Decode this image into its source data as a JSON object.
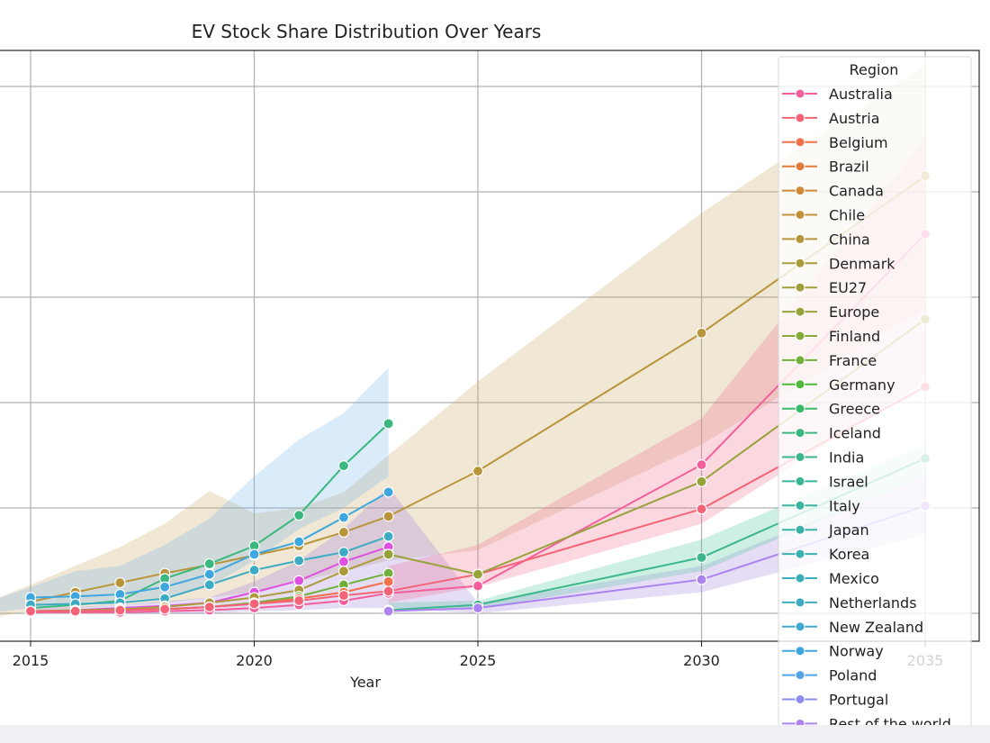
{
  "chart_data": {
    "type": "line",
    "title": "EV Stock Share Distribution Over Years",
    "xlabel": "Year",
    "ylabel": "",
    "x_ticks": [
      "2015",
      "2020",
      "2025",
      "2030",
      "2035"
    ],
    "xlim": [
      2014,
      2036.2
    ],
    "ylim": [
      -0.27,
      5.35
    ],
    "y_gridlines": [
      0,
      1,
      2,
      3,
      4,
      5
    ],
    "grid": true,
    "legend": {
      "title": "Region",
      "placement": "top-right",
      "entries": [
        {
          "name": "Australia",
          "color": "#f45f9b"
        },
        {
          "name": "Austria",
          "color": "#f56476"
        },
        {
          "name": "Belgium",
          "color": "#f2704a"
        },
        {
          "name": "Brazil",
          "color": "#e07b39"
        },
        {
          "name": "Canada",
          "color": "#d18a3a"
        },
        {
          "name": "Chile",
          "color": "#c4903a"
        },
        {
          "name": "China",
          "color": "#b8953a"
        },
        {
          "name": "Denmark",
          "color": "#ac9b3a"
        },
        {
          "name": "EU27",
          "color": "#a19f3a"
        },
        {
          "name": "Europe",
          "color": "#98a23a"
        },
        {
          "name": "Finland",
          "color": "#86a93a"
        },
        {
          "name": "France",
          "color": "#6fb03a"
        },
        {
          "name": "Germany",
          "color": "#4db83a"
        },
        {
          "name": "Greece",
          "color": "#3aba6a"
        },
        {
          "name": "Iceland",
          "color": "#3bb87f"
        },
        {
          "name": "India",
          "color": "#3bb68d"
        },
        {
          "name": "Israel",
          "color": "#3ab597"
        },
        {
          "name": "Italy",
          "color": "#3ab39f"
        },
        {
          "name": "Japan",
          "color": "#3bb2a8"
        },
        {
          "name": "Korea",
          "color": "#3bb0b0"
        },
        {
          "name": "Mexico",
          "color": "#3caeb9"
        },
        {
          "name": "Netherlands",
          "color": "#3dacc3"
        },
        {
          "name": "New Zealand",
          "color": "#3faad0"
        },
        {
          "name": "Norway",
          "color": "#3ea7df"
        },
        {
          "name": "Poland",
          "color": "#53a2e8"
        },
        {
          "name": "Portugal",
          "color": "#8d8cf0"
        },
        {
          "name": "Rest of the world",
          "color": "#ad83f0"
        }
      ]
    },
    "bands": [
      {
        "color": "#c8a868",
        "x": [
          2014,
          2015,
          2016,
          2017,
          2018,
          2019,
          2020,
          2021,
          2022,
          2023,
          2025,
          2030,
          2035
        ],
        "upper": [
          0.1,
          0.27,
          0.45,
          0.63,
          0.85,
          1.16,
          0.95,
          1.0,
          1.15,
          1.5,
          2.2,
          3.8,
          5.2
        ],
        "lower": [
          -0.05,
          0.02,
          0.05,
          0.08,
          0.1,
          0.15,
          0.2,
          0.3,
          0.4,
          0.5,
          0.6,
          1.6,
          2.9
        ]
      },
      {
        "color": "#7ab8ea",
        "x": [
          2014,
          2015,
          2016,
          2017,
          2018,
          2019,
          2020,
          2021,
          2022,
          2023
        ],
        "upper": [
          0.1,
          0.25,
          0.4,
          0.45,
          0.65,
          0.9,
          1.3,
          1.65,
          1.9,
          2.33
        ],
        "lower": [
          0.0,
          0.05,
          0.1,
          0.12,
          0.15,
          0.25,
          0.5,
          0.8,
          1.0,
          1.3
        ]
      },
      {
        "color": "#a080e0",
        "x": [
          2015,
          2017,
          2019,
          2020,
          2021,
          2022,
          2023,
          2025,
          2030,
          2035
        ],
        "upper": [
          0.05,
          0.08,
          0.15,
          0.3,
          0.5,
          0.8,
          1.2,
          0.1,
          0.45,
          1.3
        ],
        "lower": [
          0.0,
          0.0,
          0.0,
          0.02,
          0.03,
          0.05,
          0.05,
          0.0,
          0.2,
          0.75
        ]
      },
      {
        "color": "#f07090",
        "x": [
          2023,
          2025,
          2030,
          2035
        ],
        "upper": [
          0.45,
          0.65,
          1.85,
          4.5
        ],
        "lower": [
          0.1,
          0.25,
          0.85,
          2.2
        ]
      },
      {
        "color": "#50c89a",
        "x": [
          2023,
          2025,
          2030,
          2035
        ],
        "upper": [
          0.1,
          0.12,
          0.7,
          1.6
        ],
        "lower": [
          0.02,
          0.04,
          0.4,
          1.3
        ]
      }
    ],
    "series": [
      {
        "name": "China",
        "color": "#b8953a",
        "x": [
          2015,
          2016,
          2017,
          2018,
          2019,
          2020,
          2021,
          2022,
          2023,
          2025,
          2030,
          2035
        ],
        "values": [
          0.11,
          0.2,
          0.29,
          0.38,
          0.46,
          0.55,
          0.64,
          0.77,
          0.92,
          1.35,
          2.66,
          4.15
        ]
      },
      {
        "name": "Iceland",
        "color": "#3bb87f",
        "x": [
          2015,
          2016,
          2017,
          2018,
          2019,
          2020,
          2021,
          2022,
          2023
        ],
        "values": [
          0.05,
          0.08,
          0.12,
          0.33,
          0.47,
          0.64,
          0.93,
          1.4,
          1.8
        ]
      },
      {
        "name": "Norway",
        "color": "#3ea7df",
        "x": [
          2015,
          2016,
          2017,
          2018,
          2019,
          2020,
          2021,
          2022,
          2023
        ],
        "values": [
          0.15,
          0.16,
          0.18,
          0.25,
          0.37,
          0.56,
          0.68,
          0.91,
          1.15
        ]
      },
      {
        "name": "Netherlands",
        "color": "#3dacc3",
        "x": [
          2015,
          2016,
          2017,
          2018,
          2019,
          2020,
          2021,
          2022,
          2023
        ],
        "values": [
          0.08,
          0.09,
          0.1,
          0.14,
          0.27,
          0.41,
          0.5,
          0.58,
          0.73
        ]
      },
      {
        "color": "#e050e0",
        "x": [
          2015,
          2016,
          2017,
          2018,
          2019,
          2020,
          2021,
          2022,
          2023
        ],
        "values": [
          0.02,
          0.03,
          0.05,
          0.07,
          0.1,
          0.2,
          0.31,
          0.49,
          0.63
        ]
      },
      {
        "name": "Denmark",
        "color": "#ac9b3a",
        "x": [
          2015,
          2016,
          2017,
          2018,
          2019,
          2020,
          2021,
          2022,
          2023
        ],
        "values": [
          0.02,
          0.03,
          0.04,
          0.06,
          0.1,
          0.15,
          0.22,
          0.4,
          0.56
        ]
      },
      {
        "name": "France",
        "color": "#6fb03a",
        "x": [
          2015,
          2016,
          2017,
          2018,
          2019,
          2020,
          2021,
          2022,
          2023
        ],
        "values": [
          0.01,
          0.02,
          0.03,
          0.04,
          0.06,
          0.1,
          0.16,
          0.27,
          0.38
        ]
      },
      {
        "name": "Belgium",
        "color": "#f2704a",
        "x": [
          2015,
          2016,
          2017,
          2018,
          2019,
          2020,
          2021,
          2022,
          2023
        ],
        "values": [
          0.01,
          0.02,
          0.03,
          0.04,
          0.06,
          0.09,
          0.14,
          0.2,
          0.3
        ]
      },
      {
        "name": "Australia",
        "color": "#f45f9b",
        "x": [
          2015,
          2016,
          2017,
          2018,
          2019,
          2020,
          2021,
          2022,
          2023,
          2025,
          2030,
          2035
        ],
        "values": [
          0.01,
          0.01,
          0.01,
          0.02,
          0.03,
          0.05,
          0.08,
          0.12,
          0.19,
          0.26,
          1.41,
          3.6
        ]
      },
      {
        "name": "Austria",
        "color": "#f56476",
        "x": [
          2015,
          2016,
          2017,
          2018,
          2019,
          2020,
          2021,
          2022,
          2023,
          2025,
          2030,
          2035
        ],
        "values": [
          0.02,
          0.02,
          0.03,
          0.04,
          0.06,
          0.09,
          0.12,
          0.17,
          0.21,
          0.37,
          0.99,
          2.15
        ]
      },
      {
        "name": "Europe",
        "color": "#98a23a",
        "x": [
          2023,
          2025,
          2030,
          2035
        ],
        "values": [
          0.56,
          0.37,
          1.25,
          2.79
        ]
      },
      {
        "name": "India",
        "color": "#3bb68d",
        "x": [
          2023,
          2025,
          2030,
          2035
        ],
        "values": [
          0.03,
          0.08,
          0.53,
          1.47
        ]
      },
      {
        "name": "Rest of the world",
        "color": "#ad83f0",
        "x": [
          2023,
          2025,
          2030,
          2035
        ],
        "values": [
          0.02,
          0.05,
          0.32,
          1.02
        ]
      }
    ]
  }
}
